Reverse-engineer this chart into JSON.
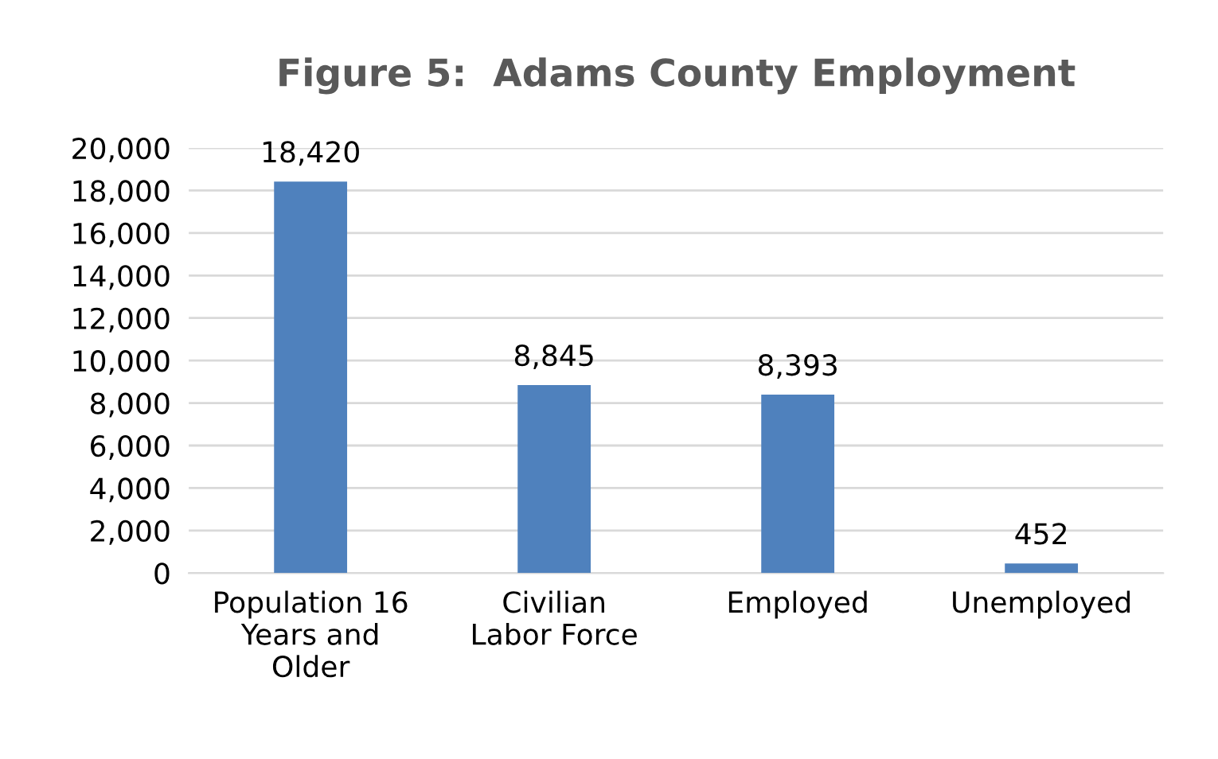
{
  "chart_data": {
    "type": "bar",
    "title": "Figure 5:  Adams County Employment",
    "categories": [
      "Population 16 Years and Older",
      "Civilian Labor Force",
      "Employed",
      "Unemployed"
    ],
    "values": [
      18420,
      8845,
      8393,
      452
    ],
    "color": "#4f81bd",
    "ylim": [
      0,
      20000
    ],
    "yticks": [
      {
        "value": 0,
        "label": "0"
      },
      {
        "value": 2000,
        "label": "2,000"
      },
      {
        "value": 4000,
        "label": "4,000"
      },
      {
        "value": 6000,
        "label": "6,000"
      },
      {
        "value": 8000,
        "label": "8,000"
      },
      {
        "value": 10000,
        "label": "10,000"
      },
      {
        "value": 12000,
        "label": "12,000"
      },
      {
        "value": 14000,
        "label": "14,000"
      },
      {
        "value": 16000,
        "label": "16,000"
      },
      {
        "value": 18000,
        "label": "18,000"
      },
      {
        "value": 20000,
        "label": "20,000"
      }
    ],
    "grid": "y",
    "value_labels": [
      "18,420",
      "8,845",
      "8,393",
      "452"
    ]
  }
}
